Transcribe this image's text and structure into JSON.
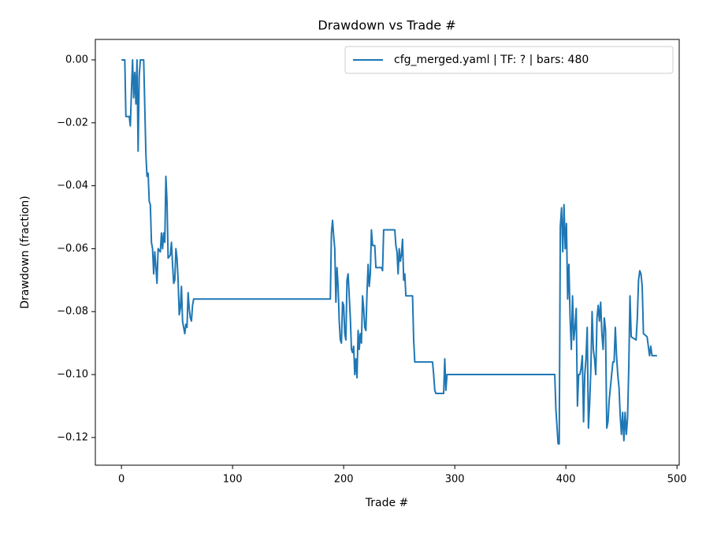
{
  "chart_data": {
    "type": "line",
    "title": "Drawdown vs Trade #",
    "xlabel": "Trade #",
    "ylabel": "Drawdown (fraction)",
    "legend": "upper right",
    "grid": false,
    "xlim": [
      -23.5,
      502
    ],
    "ylim": [
      -0.1288,
      0.0065
    ],
    "xticks": [
      0,
      100,
      200,
      300,
      400,
      500
    ],
    "yticks": [
      {
        "value": 0,
        "label": "0.00"
      },
      {
        "value": -0.02,
        "label": "−0.02"
      },
      {
        "value": -0.04,
        "label": "−0.04"
      },
      {
        "value": -0.06,
        "label": "−0.06"
      },
      {
        "value": -0.08,
        "label": "−0.08"
      },
      {
        "value": -0.1,
        "label": "−0.10"
      },
      {
        "value": -0.12,
        "label": "−0.12"
      }
    ],
    "x": [
      0,
      3,
      4,
      7,
      8,
      9,
      10,
      11,
      12,
      13,
      14,
      15,
      16,
      17,
      20,
      22,
      23,
      24,
      25,
      26,
      27,
      28,
      29,
      30,
      32,
      33,
      35,
      36,
      37,
      38,
      39,
      40,
      41,
      42,
      44,
      45,
      46,
      47,
      48,
      49,
      50,
      51,
      52,
      53,
      54,
      55,
      56,
      57,
      58,
      59,
      60,
      61,
      62,
      63,
      64,
      65,
      188,
      189,
      190,
      191,
      192,
      193,
      194,
      195,
      196,
      197,
      198,
      199,
      200,
      201,
      202,
      203,
      204,
      205,
      206,
      207,
      208,
      209,
      210,
      211,
      212,
      213,
      214,
      215,
      216,
      217,
      218,
      219,
      220,
      221,
      222,
      223,
      224,
      225,
      226,
      228,
      229,
      234,
      235,
      236,
      246,
      247,
      248,
      249,
      250,
      251,
      252,
      253,
      254,
      255,
      256,
      262,
      263,
      264,
      280,
      281,
      282,
      283,
      290,
      291,
      292,
      293,
      390,
      391,
      393,
      394,
      395,
      396.1,
      397.2,
      398.3,
      399.4,
      400.5,
      401.6,
      402.7,
      403.8,
      404.9,
      406,
      407.1,
      408.2,
      409.3,
      410.4,
      411.5,
      412.6,
      413.7,
      414.8,
      415.9,
      417,
      418.1,
      419.2,
      420.3,
      421.4,
      422.5,
      423.6,
      424.7,
      425.8,
      426.9,
      428,
      429.1,
      430.2,
      431.3,
      432.4,
      433.5,
      434.6,
      435.7,
      436.8,
      437.9,
      439,
      440.1,
      441.2,
      442.3,
      443.4,
      444.5,
      445.6,
      446.7,
      447.8,
      448.9,
      450,
      451.1,
      452.2,
      453.3,
      454.4,
      455.5,
      456.6,
      457.7,
      458.8,
      463.2,
      464.3,
      465.4,
      466.5,
      467.6,
      468.7,
      469.8,
      473.1,
      474.2,
      475.3,
      476.4,
      477.5,
      482
    ],
    "series": [
      {
        "name": "cfg_merged.yaml | TF: ? | bars: 480",
        "color": "#1f77b4",
        "values": [
          0,
          0,
          -0.018,
          -0.018,
          -0.021,
          -0.01,
          0,
          -0.012,
          -0.004,
          -0.014,
          0,
          -0.029,
          -0.005,
          0,
          0,
          -0.03,
          -0.037,
          -0.036,
          -0.045,
          -0.046,
          -0.058,
          -0.06,
          -0.068,
          -0.061,
          -0.071,
          -0.06,
          -0.061,
          -0.055,
          -0.06,
          -0.055,
          -0.058,
          -0.037,
          -0.045,
          -0.063,
          -0.062,
          -0.058,
          -0.065,
          -0.071,
          -0.07,
          -0.06,
          -0.063,
          -0.07,
          -0.081,
          -0.079,
          -0.072,
          -0.083,
          -0.085,
          -0.087,
          -0.084,
          -0.085,
          -0.074,
          -0.079,
          -0.082,
          -0.083,
          -0.078,
          -0.076,
          -0.076,
          -0.055,
          -0.051,
          -0.056,
          -0.06,
          -0.077,
          -0.066,
          -0.072,
          -0.083,
          -0.089,
          -0.09,
          -0.077,
          -0.078,
          -0.087,
          -0.089,
          -0.07,
          -0.068,
          -0.075,
          -0.082,
          -0.092,
          -0.093,
          -0.091,
          -0.1,
          -0.095,
          -0.101,
          -0.086,
          -0.092,
          -0.087,
          -0.09,
          -0.075,
          -0.079,
          -0.085,
          -0.086,
          -0.074,
          -0.065,
          -0.072,
          -0.068,
          -0.054,
          -0.059,
          -0.059,
          -0.066,
          -0.066,
          -0.067,
          -0.054,
          -0.054,
          -0.059,
          -0.061,
          -0.068,
          -0.06,
          -0.064,
          -0.062,
          -0.057,
          -0.07,
          -0.068,
          -0.075,
          -0.075,
          -0.089,
          -0.096,
          -0.096,
          -0.1,
          -0.105,
          -0.106,
          -0.106,
          -0.095,
          -0.105,
          -0.1,
          -0.1,
          -0.111,
          -0.122,
          -0.122,
          -0.053,
          -0.047,
          -0.061,
          -0.046,
          -0.06,
          -0.052,
          -0.076,
          -0.065,
          -0.082,
          -0.092,
          -0.075,
          -0.089,
          -0.085,
          -0.079,
          -0.11,
          -0.1,
          -0.1,
          -0.098,
          -0.094,
          -0.115,
          -0.1,
          -0.095,
          -0.085,
          -0.117,
          -0.109,
          -0.098,
          -0.08,
          -0.092,
          -0.095,
          -0.1,
          -0.082,
          -0.078,
          -0.083,
          -0.077,
          -0.087,
          -0.092,
          -0.082,
          -0.086,
          -0.117,
          -0.115,
          -0.108,
          -0.104,
          -0.1,
          -0.096,
          -0.096,
          -0.085,
          -0.094,
          -0.1,
          -0.104,
          -0.113,
          -0.119,
          -0.112,
          -0.121,
          -0.112,
          -0.119,
          -0.114,
          -0.098,
          -0.075,
          -0.088,
          -0.089,
          -0.082,
          -0.07,
          -0.067,
          -0.068,
          -0.072,
          -0.087,
          -0.088,
          -0.091,
          -0.094,
          -0.091,
          -0.094,
          -0.094
        ]
      }
    ]
  }
}
